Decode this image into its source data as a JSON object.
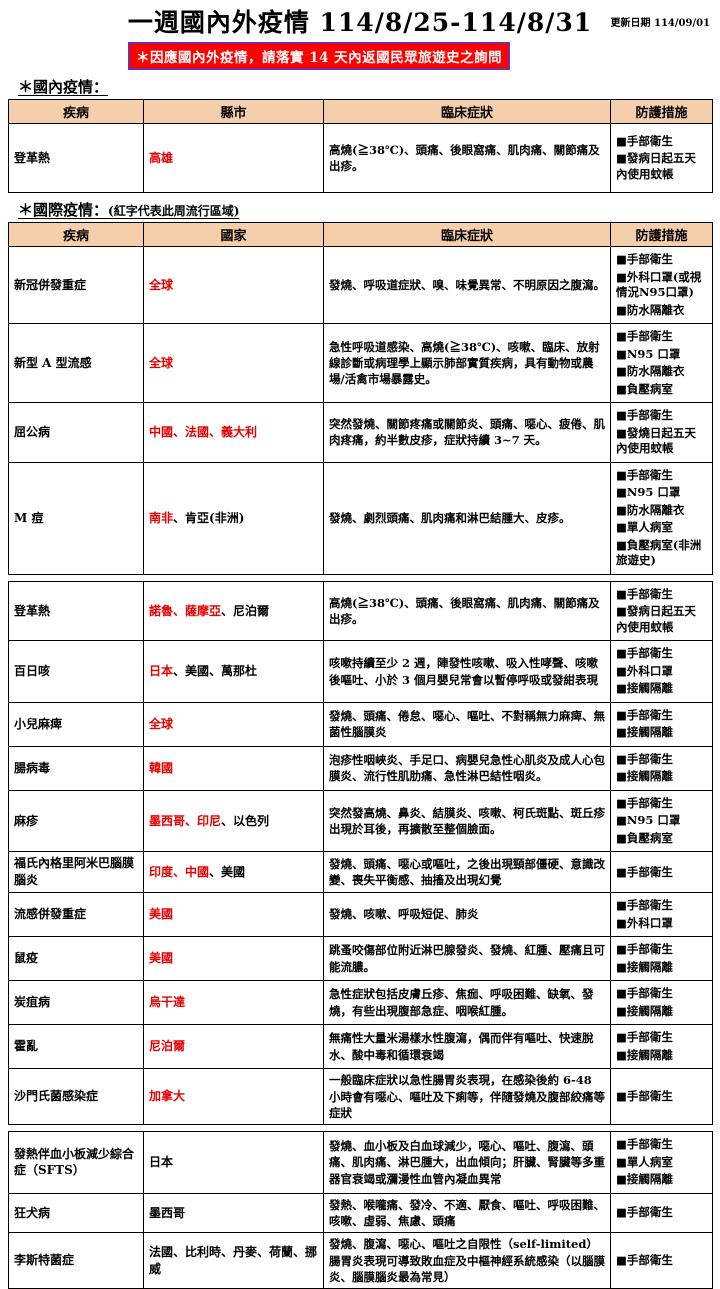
{
  "header": {
    "title": "一週國內外疫情 114/8/25-114/8/31",
    "update_label": "更新日期 114/09/01",
    "banner": "＊因應國內外疫情，請落實 14 天內返國民眾旅遊史之詢問"
  },
  "colors": {
    "banner_background": "#ff0000",
    "banner_border": "#7030a0",
    "table_header_background": "#f5cfac",
    "highlight_red_text": "#e80000"
  },
  "domestic": {
    "section_title": "＊國內疫情：",
    "columns": [
      "疾病",
      "縣市",
      "臨床症狀",
      "防護措施"
    ],
    "rows": [
      {
        "disease": "登革熱",
        "regions": [
          {
            "text": "高雄",
            "red": true
          }
        ],
        "symptoms": "高燒(≧38℃)、頭痛、後眼窩痛、肌肉痛、關節痛及出疹。",
        "measures": [
          "■手部衛生",
          "■發病日起五天內使用蚊帳"
        ]
      }
    ]
  },
  "international": {
    "section_title": "＊國際疫情：",
    "section_note": "(紅字代表此周流行區域)",
    "columns": [
      "疾病",
      "國家",
      "臨床症狀",
      "防護措施"
    ],
    "segments": [
      {
        "has_header": true,
        "rows": [
          {
            "disease": "新冠併發重症",
            "regions": [
              {
                "text": "全球",
                "red": true
              }
            ],
            "symptoms": "發燒、呼吸道症狀、嗅、味覺異常、不明原因之腹瀉。",
            "measures": [
              "■手部衛生",
              "■外科口罩(或視情況N95口罩)",
              "■防水隔離衣"
            ]
          },
          {
            "disease": "新型 A 型流感",
            "regions": [
              {
                "text": "全球",
                "red": true
              }
            ],
            "symptoms": "急性呼吸道感染、高燒(≧38℃)、咳嗽、臨床、放射線診斷或病理學上顯示肺部實質疾病，具有動物或農場/活禽市場暴露史。",
            "measures": [
              "■手部衛生",
              "■N95 口罩",
              "■防水隔離衣",
              "■負壓病室"
            ]
          },
          {
            "disease": "屈公病",
            "regions": [
              {
                "text": "中國、法國、義大利",
                "red": true
              }
            ],
            "symptoms": "突然發燒、關節疼痛或關節炎、頭痛、噁心、疲倦、肌肉疼痛，約半數皮疹，症狀持續 3~7 天。",
            "measures": [
              "■手部衛生",
              "■發燒日起五天內使用蚊帳"
            ]
          },
          {
            "disease": "M 痘",
            "regions": [
              {
                "text": "南非",
                "red": true
              },
              {
                "text": "、肯亞(非洲)",
                "red": false
              }
            ],
            "symptoms": "發燒、劇烈頭痛、肌肉痛和淋巴結腫大、皮疹。",
            "measures": [
              "■手部衛生",
              "■N95 口罩",
              "■防水隔離衣",
              "■單人病室",
              "■負壓病室(非洲旅遊史)"
            ]
          }
        ]
      },
      {
        "has_header": false,
        "rows": [
          {
            "disease": "登革熱",
            "regions": [
              {
                "text": "諾魯、薩摩亞",
                "red": true
              },
              {
                "text": "、尼泊爾",
                "red": false
              }
            ],
            "symptoms": "高燒(≧38℃)、頭痛、後眼窩痛、肌肉痛、關節痛及出疹。",
            "measures": [
              "■手部衛生",
              "■發病日起五天內使用蚊帳"
            ]
          },
          {
            "disease": "百日咳",
            "regions": [
              {
                "text": "日本",
                "red": true
              },
              {
                "text": "、美國、萬那杜",
                "red": false
              }
            ],
            "symptoms": "咳嗽持續至少 2 週，陣發性咳嗽、吸入性哮聲、咳嗽後嘔吐、小於 3 個月嬰兒常會以暫停呼吸或發紺表現",
            "measures": [
              "■手部衛生",
              "■外科口罩",
              "■接觸隔離"
            ]
          },
          {
            "disease": "小兒麻痺",
            "regions": [
              {
                "text": "全球",
                "red": true
              }
            ],
            "symptoms": "發燒、頭痛、倦怠、噁心、嘔吐、不對稱無力麻痺、無菌性腦膜炎",
            "measures": [
              "■手部衛生",
              "■接觸隔離"
            ]
          },
          {
            "disease": "腸病毒",
            "regions": [
              {
                "text": "韓國",
                "red": true
              }
            ],
            "symptoms": "泡疹性咽峽炎、手足口、病嬰兒急性心肌炎及成人心包膜炎、流行性肌肋痛、急性淋巴結性咽炎。",
            "measures": [
              "■手部衛生",
              "■接觸隔離"
            ]
          },
          {
            "disease": "麻疹",
            "regions": [
              {
                "text": "墨西哥、印尼",
                "red": true
              },
              {
                "text": "、以色列",
                "red": false
              }
            ],
            "symptoms": "突然發高燒、鼻炎、結膜炎、咳嗽、柯氏斑點、斑丘疹出現於耳後，再擴散至整個臉面。",
            "measures": [
              "■手部衛生",
              "■N95 口罩",
              "■負壓病室"
            ]
          },
          {
            "disease": "福氏內格里阿米巴腦膜腦炎",
            "regions": [
              {
                "text": "印度、中國",
                "red": true
              },
              {
                "text": "、美國",
                "red": false
              }
            ],
            "symptoms": "發燒、頭痛、噁心或嘔吐，之後出現頸部僵硬、意識改變、喪失平衡感、抽搐及出現幻覺",
            "measures": [
              "■手部衛生"
            ]
          },
          {
            "disease": "流感併發重症",
            "regions": [
              {
                "text": "美國",
                "red": true
              }
            ],
            "symptoms": "發燒、咳嗽、呼吸短促、肺炎",
            "measures": [
              "■手部衛生",
              "■外科口罩"
            ]
          },
          {
            "disease": "鼠疫",
            "regions": [
              {
                "text": "美國",
                "red": true
              }
            ],
            "symptoms": "跳蚤咬傷部位附近淋巴腺發炎、發燒、紅腫、壓痛且可能流膿。",
            "measures": [
              "■手部衛生",
              "■接觸隔離"
            ]
          },
          {
            "disease": "炭疽病",
            "regions": [
              {
                "text": "烏干達",
                "red": true
              }
            ],
            "symptoms": "急性症狀包括皮膚丘疹、焦痂、呼吸困難、缺氧、發燒，有些出現腹部急症、咽喉紅腫。",
            "measures": [
              "■手部衛生",
              "■接觸隔離"
            ]
          },
          {
            "disease": "霍亂",
            "regions": [
              {
                "text": "尼泊爾",
                "red": true
              }
            ],
            "symptoms": "無痛性大量米湯樣水性腹瀉，偶而伴有嘔吐、快速脫水、酸中毒和循環衰竭",
            "measures": [
              "■手部衛生",
              "■接觸隔離"
            ]
          },
          {
            "disease": "沙門氏菌感染症",
            "regions": [
              {
                "text": "加拿大",
                "red": true
              }
            ],
            "symptoms": "一般臨床症狀以急性腸胃炎表現，在感染後約 6-48 小時會有噁心、嘔吐及下痢等，伴隨發燒及腹部絞痛等症狀",
            "measures": [
              "■手部衛生"
            ]
          }
        ]
      },
      {
        "has_header": false,
        "rows": [
          {
            "disease": "發熱伴血小板減少綜合症（SFTS）",
            "regions": [
              {
                "text": "日本",
                "red": false
              }
            ],
            "symptoms": "發燒、血小板及白血球減少，噁心、嘔吐、腹瀉、頭痛、肌肉痛、淋巴腫大，出血傾向；肝臟、腎臟等多重器官衰竭或瀰漫性血管內凝血異常",
            "measures": [
              "■手部衛生",
              "■單人病室",
              "■接觸隔離"
            ]
          },
          {
            "disease": "狂犬病",
            "regions": [
              {
                "text": "墨西哥",
                "red": false
              }
            ],
            "symptoms": "發熱、喉嚨痛、發冷、不適、厭食、嘔吐、呼吸困難、咳嗽、虛弱、焦慮、頭痛",
            "measures": [
              "■手部衛生"
            ]
          },
          {
            "disease": "李斯特菌症",
            "regions": [
              {
                "text": "法國、比利時、丹麥、荷蘭、挪威",
                "red": false
              }
            ],
            "symptoms": "發燒、腹瀉、噁心、嘔吐之自限性（self-limited）腸胃炎表現可導致敗血症及中樞神經系統感染（以腦膜炎、腦膜腦炎最為常見）",
            "measures": [
              "■手部衛生"
            ]
          }
        ]
      }
    ]
  }
}
